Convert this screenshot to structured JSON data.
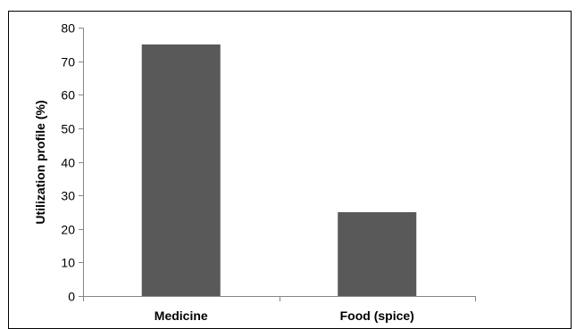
{
  "chart_data": {
    "type": "bar",
    "title": "",
    "xlabel": "",
    "ylabel": "Utilization profile (%)",
    "categories": [
      "Medicine",
      "Food (spice)"
    ],
    "values": [
      75,
      25
    ],
    "ylim": [
      0,
      80
    ],
    "yticks": [
      0,
      10,
      20,
      30,
      40,
      50,
      60,
      70,
      80
    ],
    "grid": false,
    "legend": "none",
    "bar_color": "#595959",
    "axis_color": "#868686"
  }
}
